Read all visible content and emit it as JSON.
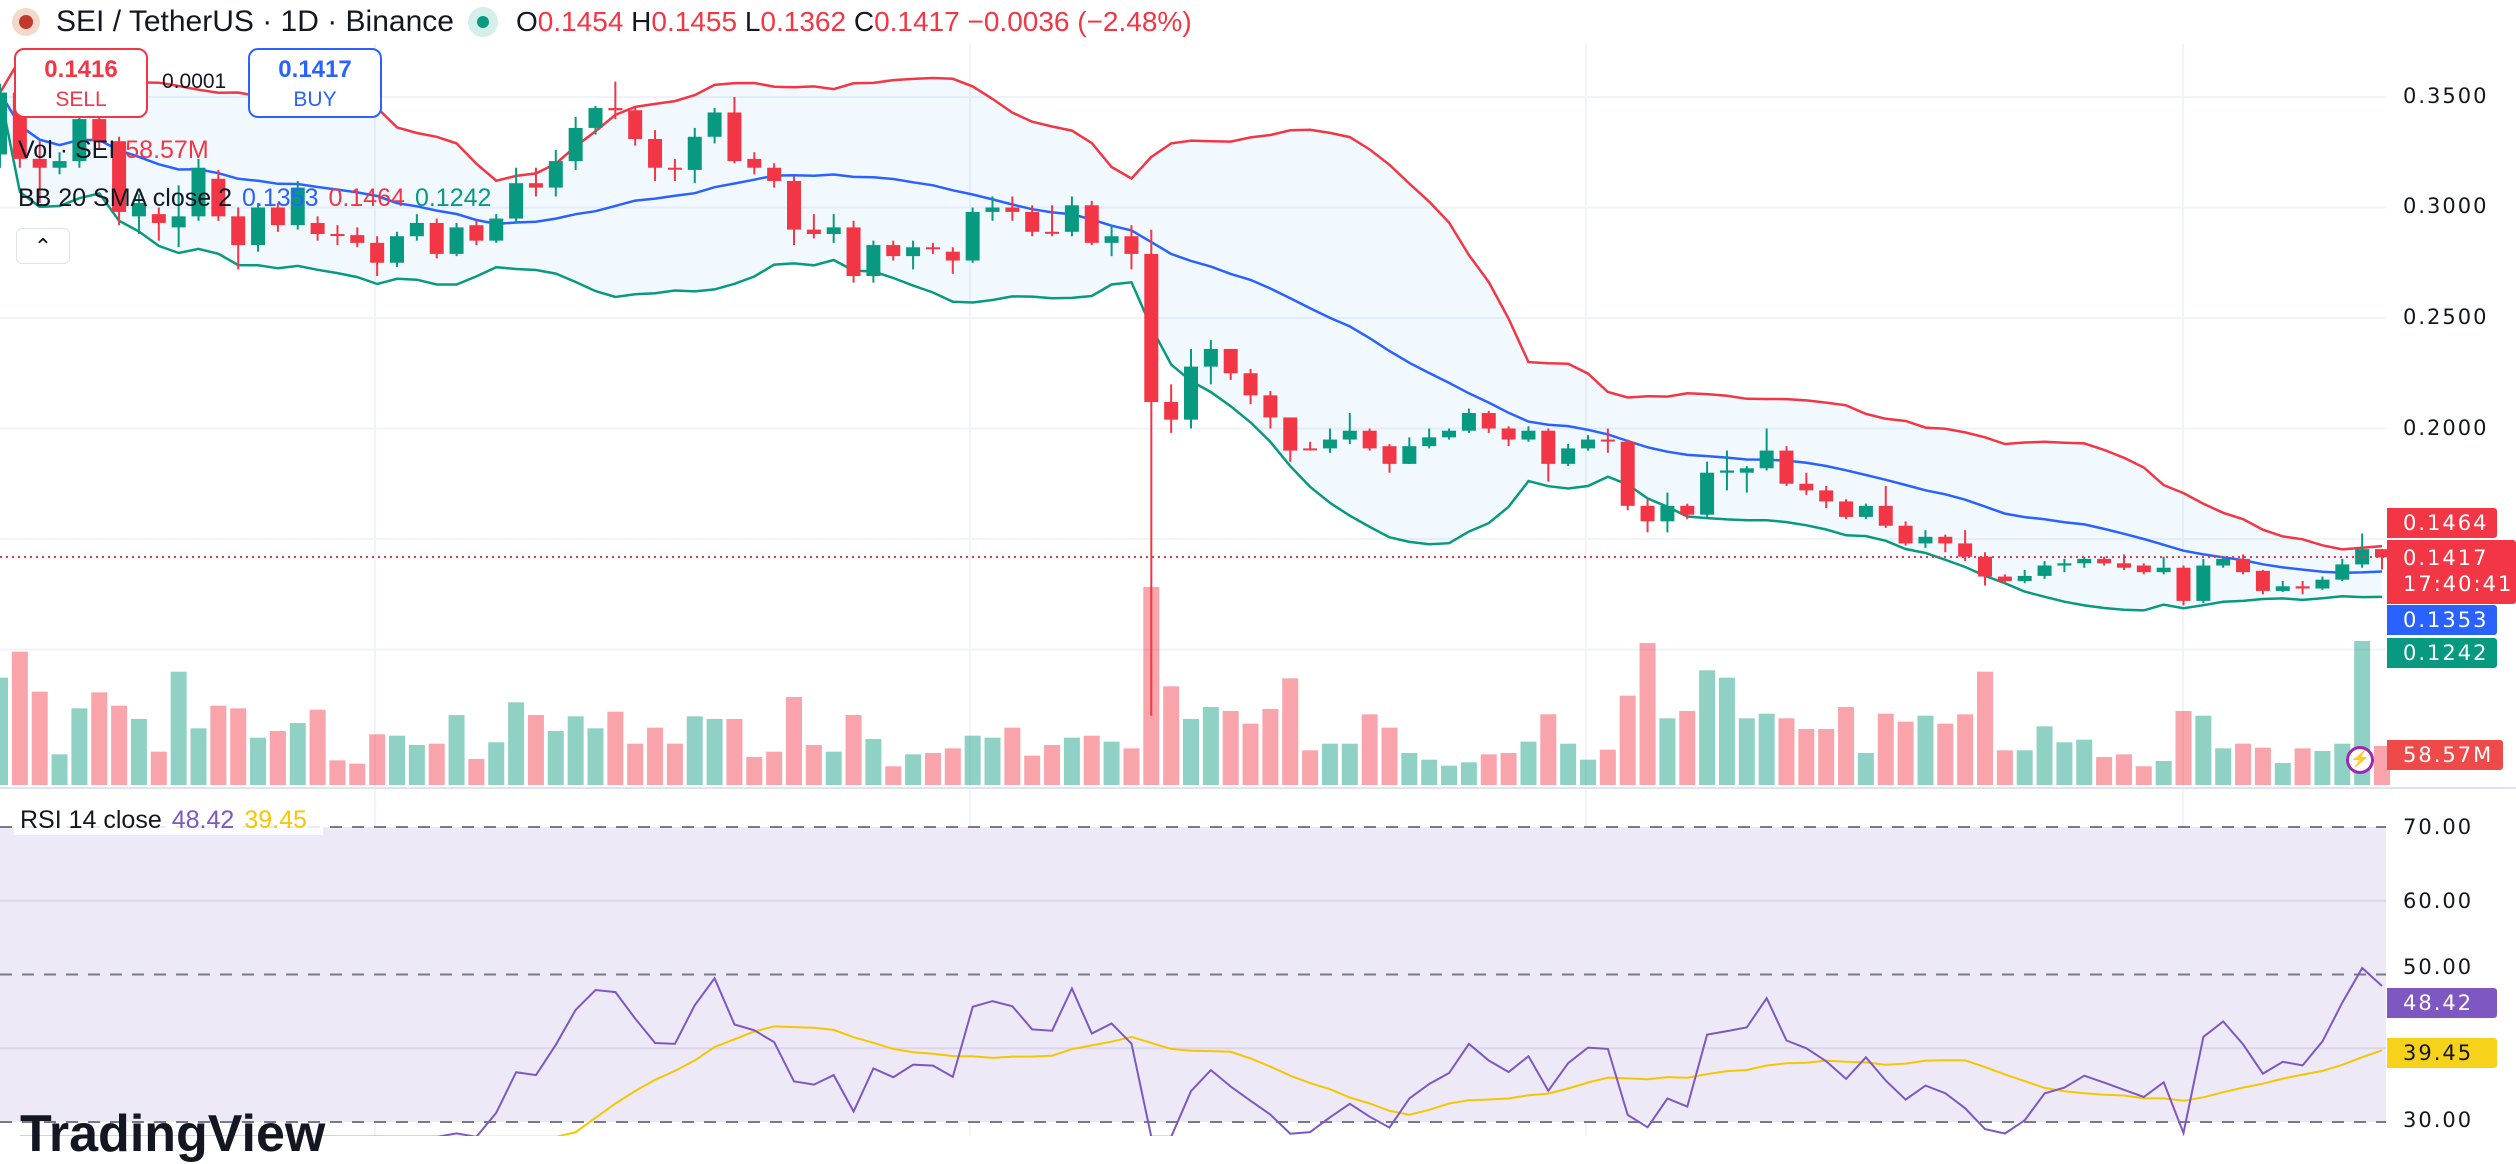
{
  "header": {
    "title": "SEI / TetherUS · 1D · Binance",
    "open_label": "O",
    "open": "0.1454",
    "high_label": "H",
    "high": "0.1455",
    "low_label": "L",
    "low": "0.1362",
    "close_label": "C",
    "close": "0.1417",
    "change": "−0.0036 (−2.48%)",
    "status_color": "#089981"
  },
  "trade": {
    "sell_price": "0.1416",
    "sell_label": "SELL",
    "spread": "0.0001",
    "buy_price": "0.1417",
    "buy_label": "BUY"
  },
  "legend": {
    "vol_label": "Vol · SEI",
    "vol_value": "58.57M",
    "bb_label": "BB 20 SMA close 2",
    "bb_basis": "0.1353",
    "bb_upper": "0.1464",
    "bb_lower": "0.1242",
    "collapse_icon": "chevron-up",
    "rsi_label": "RSI 14 close",
    "rsi_value": "48.42",
    "rsi_ma": "39.45"
  },
  "axis": {
    "price_ticks": [
      "0.3500",
      "0.3000",
      "0.2500",
      "0.2000"
    ],
    "rsi_ticks": [
      "70.00",
      "60.00",
      "50.00",
      "30.00"
    ]
  },
  "tags": {
    "bb_upper": "0.1464",
    "last_price": "0.1417",
    "countdown": "17:40:41",
    "bb_basis": "0.1353",
    "bb_lower": "0.1242",
    "volume": "58.57M",
    "rsi": "48.42",
    "rsi_ma": "39.45"
  },
  "branding": {
    "logo": "TradingView"
  },
  "colors": {
    "up": "#089981",
    "down": "#f23645",
    "bb_upper": "#f23645",
    "bb_basis": "#2962ff",
    "bb_lower": "#089981",
    "rsi": "#7e57c2",
    "rsi_ma": "#f7c600"
  },
  "chart_data": {
    "type": "candlestick",
    "interval": "1D",
    "ylim": [
      0.07,
      0.36
    ],
    "rsi_ylim": [
      30,
      70
    ],
    "indicators": [
      "Volume",
      "Bollinger Bands 20 SMA close 2",
      "RSI 14 close"
    ],
    "candles_ohlc": [
      [
        0.324,
        0.356,
        0.318,
        0.352
      ],
      [
        0.352,
        0.355,
        0.318,
        0.322
      ],
      [
        0.322,
        0.33,
        0.302,
        0.318
      ],
      [
        0.318,
        0.325,
        0.315,
        0.321
      ],
      [
        0.321,
        0.345,
        0.318,
        0.34
      ],
      [
        0.34,
        0.342,
        0.326,
        0.33
      ],
      [
        0.33,
        0.332,
        0.292,
        0.298
      ],
      [
        0.296,
        0.306,
        0.288,
        0.302
      ],
      [
        0.297,
        0.3,
        0.285,
        0.293
      ],
      [
        0.291,
        0.31,
        0.282,
        0.296
      ],
      [
        0.296,
        0.322,
        0.294,
        0.318
      ],
      [
        0.313,
        0.317,
        0.294,
        0.296
      ],
      [
        0.296,
        0.3,
        0.272,
        0.283
      ],
      [
        0.283,
        0.302,
        0.28,
        0.3
      ],
      [
        0.3,
        0.302,
        0.289,
        0.292
      ],
      [
        0.292,
        0.312,
        0.29,
        0.309
      ],
      [
        0.293,
        0.296,
        0.285,
        0.288
      ],
      [
        0.288,
        0.292,
        0.283,
        0.2875
      ],
      [
        0.2875,
        0.291,
        0.282,
        0.284
      ],
      [
        0.284,
        0.287,
        0.269,
        0.275
      ],
      [
        0.275,
        0.289,
        0.273,
        0.287
      ],
      [
        0.287,
        0.297,
        0.285,
        0.293
      ],
      [
        0.293,
        0.295,
        0.277,
        0.279
      ],
      [
        0.279,
        0.293,
        0.278,
        0.291
      ],
      [
        0.292,
        0.294,
        0.283,
        0.285
      ],
      [
        0.285,
        0.297,
        0.284,
        0.295
      ],
      [
        0.295,
        0.318,
        0.293,
        0.311
      ],
      [
        0.311,
        0.318,
        0.305,
        0.309
      ],
      [
        0.309,
        0.326,
        0.305,
        0.321
      ],
      [
        0.321,
        0.341,
        0.317,
        0.336
      ],
      [
        0.336,
        0.346,
        0.333,
        0.345
      ],
      [
        0.345,
        0.357,
        0.34,
        0.344
      ],
      [
        0.344,
        0.345,
        0.328,
        0.331
      ],
      [
        0.331,
        0.335,
        0.312,
        0.318
      ],
      [
        0.318,
        0.322,
        0.312,
        0.3175
      ],
      [
        0.317,
        0.336,
        0.311,
        0.332
      ],
      [
        0.332,
        0.345,
        0.329,
        0.343
      ],
      [
        0.343,
        0.35,
        0.32,
        0.321
      ],
      [
        0.322,
        0.325,
        0.315,
        0.318
      ],
      [
        0.318,
        0.32,
        0.309,
        0.312
      ],
      [
        0.312,
        0.314,
        0.283,
        0.29
      ],
      [
        0.29,
        0.297,
        0.286,
        0.288
      ],
      [
        0.288,
        0.297,
        0.284,
        0.291
      ],
      [
        0.291,
        0.294,
        0.266,
        0.269
      ],
      [
        0.269,
        0.285,
        0.266,
        0.283
      ],
      [
        0.283,
        0.285,
        0.276,
        0.278
      ],
      [
        0.278,
        0.285,
        0.272,
        0.282
      ],
      [
        0.282,
        0.284,
        0.279,
        0.2815
      ],
      [
        0.28,
        0.282,
        0.27,
        0.276
      ],
      [
        0.276,
        0.3,
        0.275,
        0.298
      ],
      [
        0.298,
        0.305,
        0.294,
        0.3
      ],
      [
        0.3,
        0.305,
        0.294,
        0.298
      ],
      [
        0.298,
        0.301,
        0.287,
        0.289
      ],
      [
        0.289,
        0.301,
        0.287,
        0.2885
      ],
      [
        0.289,
        0.305,
        0.287,
        0.301
      ],
      [
        0.301,
        0.303,
        0.283,
        0.284
      ],
      [
        0.284,
        0.292,
        0.278,
        0.287
      ],
      [
        0.287,
        0.292,
        0.272,
        0.279
      ],
      [
        0.279,
        0.29,
        0.07,
        0.212
      ],
      [
        0.212,
        0.22,
        0.198,
        0.204
      ],
      [
        0.204,
        0.236,
        0.2,
        0.228
      ],
      [
        0.228,
        0.24,
        0.22,
        0.236
      ],
      [
        0.236,
        0.236,
        0.222,
        0.225
      ],
      [
        0.225,
        0.227,
        0.211,
        0.215
      ],
      [
        0.215,
        0.217,
        0.2,
        0.205
      ],
      [
        0.205,
        0.205,
        0.185,
        0.19
      ],
      [
        0.191,
        0.194,
        0.19,
        0.1905
      ],
      [
        0.191,
        0.2,
        0.189,
        0.195
      ],
      [
        0.195,
        0.207,
        0.193,
        0.199
      ],
      [
        0.199,
        0.2,
        0.19,
        0.191
      ],
      [
        0.192,
        0.193,
        0.18,
        0.184
      ],
      [
        0.184,
        0.196,
        0.184,
        0.192
      ],
      [
        0.192,
        0.2,
        0.191,
        0.196
      ],
      [
        0.196,
        0.2,
        0.195,
        0.199
      ],
      [
        0.199,
        0.209,
        0.198,
        0.207
      ],
      [
        0.207,
        0.208,
        0.198,
        0.2
      ],
      [
        0.2,
        0.201,
        0.192,
        0.195
      ],
      [
        0.195,
        0.201,
        0.194,
        0.199
      ],
      [
        0.199,
        0.2,
        0.176,
        0.184
      ],
      [
        0.184,
        0.193,
        0.183,
        0.191
      ],
      [
        0.191,
        0.197,
        0.19,
        0.195
      ],
      [
        0.195,
        0.2,
        0.189,
        0.1945
      ],
      [
        0.194,
        0.195,
        0.163,
        0.165
      ],
      [
        0.165,
        0.168,
        0.153,
        0.158
      ],
      [
        0.158,
        0.171,
        0.153,
        0.165
      ],
      [
        0.165,
        0.166,
        0.159,
        0.161
      ],
      [
        0.161,
        0.185,
        0.16,
        0.18
      ],
      [
        0.18,
        0.19,
        0.172,
        0.181
      ],
      [
        0.18,
        0.183,
        0.171,
        0.182
      ],
      [
        0.182,
        0.2,
        0.181,
        0.19
      ],
      [
        0.19,
        0.192,
        0.174,
        0.175
      ],
      [
        0.175,
        0.18,
        0.17,
        0.172
      ],
      [
        0.172,
        0.174,
        0.164,
        0.167
      ],
      [
        0.167,
        0.168,
        0.159,
        0.16
      ],
      [
        0.16,
        0.166,
        0.159,
        0.165
      ],
      [
        0.165,
        0.174,
        0.155,
        0.156
      ],
      [
        0.156,
        0.158,
        0.147,
        0.148
      ],
      [
        0.148,
        0.154,
        0.146,
        0.151
      ],
      [
        0.151,
        0.152,
        0.144,
        0.148
      ],
      [
        0.148,
        0.154,
        0.14,
        0.142
      ],
      [
        0.142,
        0.144,
        0.129,
        0.133
      ],
      [
        0.133,
        0.134,
        0.13,
        0.131
      ],
      [
        0.131,
        0.136,
        0.13,
        0.1333
      ],
      [
        0.1333,
        0.14,
        0.132,
        0.138
      ],
      [
        0.138,
        0.141,
        0.135,
        0.139
      ],
      [
        0.139,
        0.142,
        0.137,
        0.141
      ],
      [
        0.141,
        0.142,
        0.138,
        0.139
      ],
      [
        0.139,
        0.143,
        0.136,
        0.137
      ],
      [
        0.138,
        0.139,
        0.134,
        0.135
      ],
      [
        0.135,
        0.142,
        0.134,
        0.137
      ],
      [
        0.137,
        0.138,
        0.12,
        0.122
      ],
      [
        0.122,
        0.141,
        0.121,
        0.138
      ],
      [
        0.138,
        0.142,
        0.137,
        0.141
      ],
      [
        0.141,
        0.143,
        0.134,
        0.135
      ],
      [
        0.1356,
        0.136,
        0.125,
        0.1265
      ],
      [
        0.1265,
        0.131,
        0.126,
        0.1286
      ],
      [
        0.1286,
        0.131,
        0.125,
        0.1276
      ],
      [
        0.1276,
        0.133,
        0.127,
        0.1316
      ],
      [
        0.1316,
        0.141,
        0.131,
        0.1385
      ],
      [
        0.1385,
        0.1525,
        0.137,
        0.1454
      ],
      [
        0.1454,
        0.1455,
        0.1362,
        0.1417
      ]
    ],
    "volumes_millions": [
      161,
      200,
      140,
      46,
      115,
      139,
      119,
      99,
      50,
      170,
      85,
      119,
      115,
      71,
      81,
      93,
      113,
      37,
      32,
      76,
      74,
      60,
      62,
      105,
      39,
      64,
      124,
      105,
      81,
      103,
      85,
      110,
      62,
      86,
      62,
      103,
      99,
      99,
      42,
      50,
      132,
      60,
      50,
      105,
      69,
      28,
      46,
      48,
      55,
      74,
      71,
      86,
      44,
      60,
      71,
      74,
      65,
      55,
      297,
      148,
      99,
      117,
      111,
      92,
      114,
      160,
      52,
      62,
      62,
      106,
      86,
      48,
      38,
      29,
      34,
      46,
      48,
      65,
      106,
      62,
      38,
      53,
      134,
      213,
      100,
      111,
      172,
      161,
      100,
      107,
      100,
      84,
      84,
      117,
      48,
      107,
      95,
      104,
      92,
      106,
      170,
      52,
      52,
      88,
      64,
      68,
      42,
      46,
      28,
      36,
      111,
      104,
      55,
      62,
      56,
      33,
      55,
      51,
      62,
      216,
      58.57
    ]
  }
}
